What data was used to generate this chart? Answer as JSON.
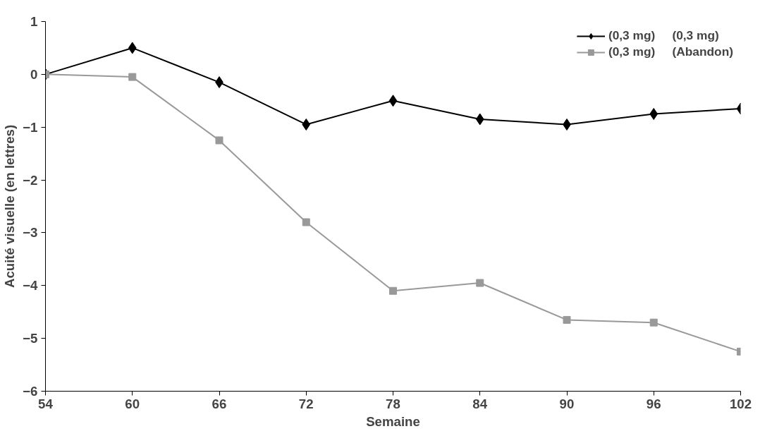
{
  "chart_data": {
    "type": "line",
    "xlabel": "Semaine",
    "ylabel": "Acuité visuelle (en lettres)",
    "x": [
      54,
      60,
      66,
      72,
      78,
      84,
      90,
      96,
      102
    ],
    "series": [
      {
        "name": "(0,3 mg)     (0,3 mg)",
        "color": "#000000",
        "marker": "diamond",
        "values": [
          0,
          0.5,
          -0.15,
          -0.95,
          -0.5,
          -0.85,
          -0.95,
          -0.75,
          -0.65
        ]
      },
      {
        "name": "(0,3 mg)     (Abandon)",
        "color": "#999999",
        "marker": "square",
        "values": [
          0,
          -0.05,
          -1.25,
          -2.8,
          -4.1,
          -3.95,
          -4.65,
          -4.7,
          -5.25
        ]
      }
    ],
    "xlim": [
      54,
      102
    ],
    "xticks": [
      54,
      60,
      66,
      72,
      78,
      84,
      90,
      96,
      102
    ],
    "ylim": [
      -6,
      1
    ],
    "yticks": [
      -6,
      -5,
      -4,
      -3,
      -2,
      -1,
      0,
      1
    ],
    "grid": false,
    "legend": "top right",
    "line_style": "solid"
  }
}
